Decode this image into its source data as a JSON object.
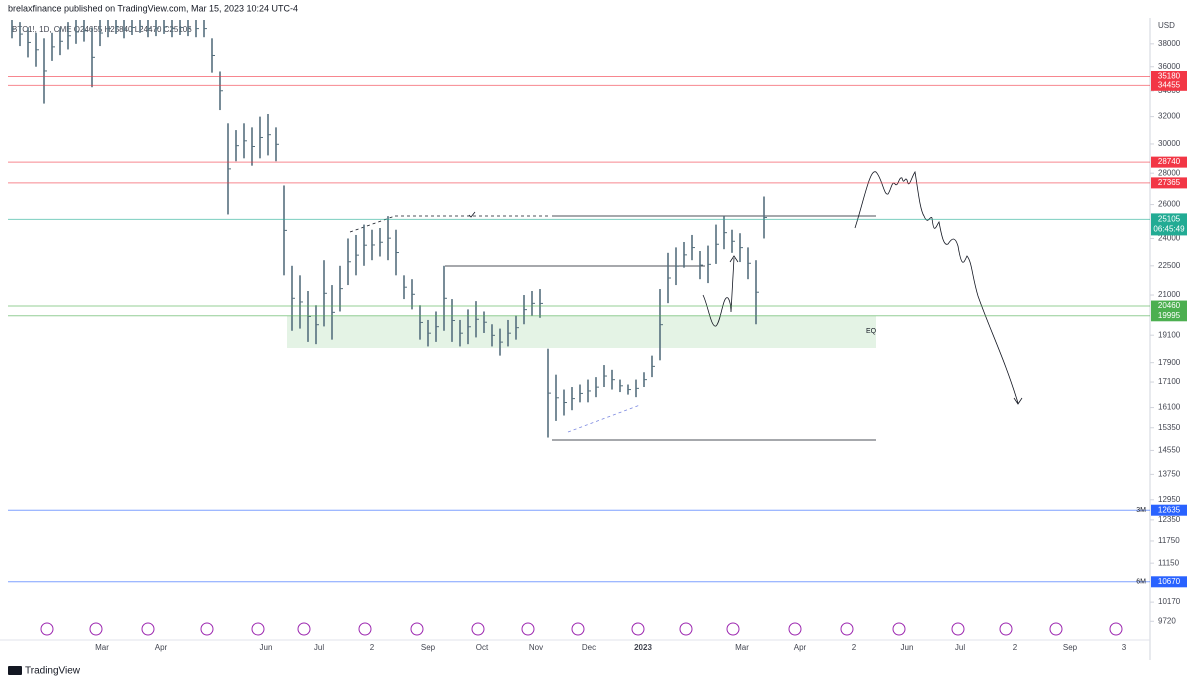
{
  "header": {
    "publisher": "brelaxfinance published on TradingView.com, Mar 15, 2023 10:24 UTC-4"
  },
  "chart": {
    "symbol": "BTC1!, 1D, CME  O24655 H25840 L24470 C25105",
    "currency": "USD",
    "log": true,
    "ylim": [
      40200,
      9300
    ],
    "yticks": [
      38000,
      36000,
      34000,
      32000,
      30000,
      28000,
      26000,
      24000,
      22500,
      21000,
      19100,
      17900,
      17100,
      16100,
      15350,
      14550,
      13750,
      12950,
      12350,
      11750,
      11150,
      10170,
      9720
    ],
    "time_labels": [
      "Mar",
      "Apr",
      "Jun",
      "Jul",
      "2",
      "Sep",
      "Oct",
      "Nov",
      "Dec",
      "2023",
      "Mar",
      "Apr",
      "2",
      "Jun",
      "Jul",
      "2",
      "Sep",
      "3"
    ],
    "bar_color": "#56707e",
    "bars": [
      [
        40200,
        38500
      ],
      [
        40000,
        37800
      ],
      [
        39500,
        36800
      ],
      [
        39000,
        36000
      ],
      [
        38500,
        33000
      ],
      [
        39000,
        36500
      ],
      [
        39500,
        37000
      ],
      [
        40000,
        37500
      ],
      [
        40200,
        38000
      ],
      [
        40200,
        38200
      ],
      [
        39500,
        34300
      ],
      [
        40200,
        37800
      ],
      [
        40200,
        38600
      ],
      [
        40200,
        38900
      ],
      [
        40200,
        38500
      ],
      [
        40200,
        38800
      ],
      [
        40200,
        39000
      ],
      [
        40200,
        38600
      ],
      [
        40200,
        38700
      ],
      [
        40200,
        38900
      ],
      [
        40200,
        38600
      ],
      [
        40200,
        38800
      ],
      [
        40200,
        38700
      ],
      [
        40200,
        38600
      ],
      [
        40200,
        38600
      ],
      [
        38500,
        35500
      ],
      [
        35600,
        32500
      ],
      [
        31500,
        25400
      ],
      [
        31000,
        28800
      ],
      [
        31500,
        29000
      ],
      [
        31200,
        28500
      ],
      [
        32000,
        29000
      ],
      [
        32200,
        29200
      ],
      [
        31200,
        28800
      ],
      [
        27200,
        22000
      ],
      [
        22500,
        19300
      ],
      [
        22000,
        19400
      ],
      [
        21200,
        18800
      ],
      [
        20500,
        18700
      ],
      [
        22800,
        19500
      ],
      [
        21500,
        18900
      ],
      [
        22500,
        20200
      ],
      [
        24000,
        21500
      ],
      [
        24200,
        22000
      ],
      [
        24800,
        22500
      ],
      [
        24500,
        22800
      ],
      [
        24600,
        23000
      ],
      [
        25300,
        22800
      ],
      [
        24500,
        22000
      ],
      [
        22000,
        20800
      ],
      [
        21800,
        20300
      ],
      [
        20500,
        18900
      ],
      [
        19800,
        18600
      ],
      [
        20200,
        18800
      ],
      [
        22500,
        19300
      ],
      [
        20800,
        18800
      ],
      [
        19800,
        18600
      ],
      [
        20300,
        18700
      ],
      [
        20700,
        19000
      ],
      [
        20200,
        19200
      ],
      [
        19600,
        18600
      ],
      [
        19400,
        18200
      ],
      [
        19800,
        18600
      ],
      [
        20000,
        18900
      ],
      [
        21000,
        19600
      ],
      [
        21200,
        20000
      ],
      [
        21300,
        19900
      ],
      [
        18500,
        15000
      ],
      [
        17400,
        15600
      ],
      [
        16800,
        15800
      ],
      [
        16900,
        16000
      ],
      [
        17000,
        16300
      ],
      [
        17200,
        16300
      ],
      [
        17300,
        16500
      ],
      [
        17800,
        16900
      ],
      [
        17600,
        16800
      ],
      [
        17200,
        16700
      ],
      [
        17000,
        16600
      ],
      [
        17200,
        16500
      ],
      [
        17500,
        16900
      ],
      [
        18200,
        17300
      ],
      [
        21300,
        18000
      ],
      [
        23200,
        20600
      ],
      [
        23500,
        21500
      ],
      [
        23800,
        22400
      ],
      [
        24200,
        22800
      ],
      [
        23300,
        21800
      ],
      [
        23600,
        21600
      ],
      [
        24800,
        22600
      ],
      [
        25300,
        23400
      ],
      [
        24500,
        23200
      ],
      [
        24300,
        22700
      ],
      [
        23500,
        21800
      ],
      [
        22800,
        19600
      ],
      [
        26500,
        24000
      ]
    ],
    "levels": [
      {
        "value": 35180,
        "color": "#f23645"
      },
      {
        "value": 34455,
        "color": "#f23645"
      },
      {
        "value": 28740,
        "color": "#f23645"
      },
      {
        "value": 27365,
        "color": "#f23645"
      },
      {
        "value": 25105,
        "color": "#22ab94",
        "countdown": "06:45:49"
      },
      {
        "value": 20460,
        "color": "#4caf50"
      },
      {
        "value": 19995,
        "color": "#4caf50"
      },
      {
        "value": 12635,
        "color": "#2962ff",
        "tag": "3M"
      },
      {
        "value": 10670,
        "color": "#2962ff",
        "tag": "6M"
      }
    ],
    "eq_label": "EQ"
  },
  "footer": {
    "brand": "TradingView"
  }
}
